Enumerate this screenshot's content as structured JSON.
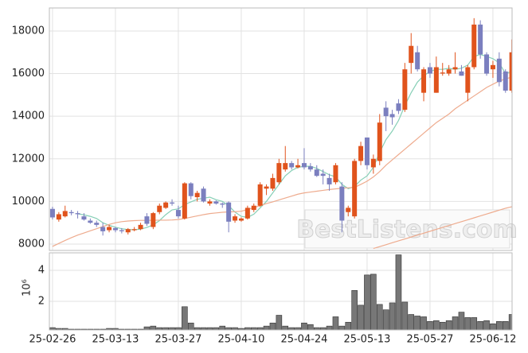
{
  "chart_data": [
    {
      "type": "candlestick",
      "up_color": "#e0531c",
      "down_color": "#7b7fbf",
      "open": [
        9650,
        9150,
        9300,
        9500,
        9450,
        9300,
        9100,
        9000,
        8800,
        8650,
        8750,
        8650,
        8550,
        8650,
        8700,
        9300,
        8800,
        9500,
        9700,
        9950,
        9600,
        9200,
        10850,
        10200,
        10600,
        9900,
        10000,
        9900,
        9950,
        9100,
        9100,
        9200,
        9600,
        9800,
        10600,
        10600,
        10900,
        11500,
        11800,
        11600,
        11800,
        11650,
        11500,
        11300,
        11100,
        10900,
        10700,
        9500,
        9300,
        11900,
        13000,
        11600,
        11900,
        14400,
        14100,
        14600,
        14300,
        16500,
        17000,
        15100,
        16300,
        15100,
        16000,
        16000,
        16200,
        16100,
        15100,
        16300,
        18300,
        16900,
        16200,
        16700,
        16100,
        15200
      ],
      "high": [
        9750,
        9500,
        9800,
        9600,
        9550,
        9450,
        9200,
        9100,
        9000,
        8900,
        8800,
        8750,
        8750,
        8800,
        9000,
        9450,
        9500,
        9900,
        10000,
        10100,
        9800,
        10900,
        10900,
        10500,
        10700,
        10100,
        10050,
        9950,
        10000,
        9400,
        9250,
        9800,
        9900,
        10900,
        10800,
        11300,
        12000,
        12600,
        11900,
        12000,
        12500,
        11800,
        11700,
        11500,
        11300,
        11800,
        10900,
        9800,
        12000,
        12800,
        13000,
        12200,
        14100,
        14700,
        14300,
        14800,
        16500,
        17900,
        17300,
        16300,
        16500,
        16800,
        16500,
        16400,
        17000,
        16400,
        16400,
        18600,
        18500,
        17000,
        16600,
        17000,
        16200,
        17600
      ],
      "low": [
        9150,
        9050,
        9250,
        9350,
        9200,
        9100,
        8950,
        8800,
        8400,
        8550,
        8550,
        8500,
        8450,
        8600,
        8650,
        8850,
        8700,
        9400,
        9650,
        9800,
        9200,
        9150,
        10100,
        10000,
        9950,
        9800,
        9850,
        9700,
        8550,
        9000,
        9050,
        9150,
        9500,
        9750,
        10300,
        10500,
        10800,
        11400,
        11500,
        11550,
        11500,
        11400,
        11150,
        10800,
        10500,
        10800,
        8550,
        9300,
        9200,
        11700,
        11500,
        11300,
        11700,
        13300,
        13600,
        14100,
        14200,
        16000,
        16100,
        14700,
        15800,
        15100,
        15900,
        15900,
        16000,
        15900,
        14700,
        16200,
        16700,
        15900,
        15800,
        15400,
        15100,
        15100
      ],
      "close": [
        9250,
        9400,
        9550,
        9450,
        9400,
        9150,
        9000,
        8900,
        8600,
        8800,
        8650,
        8600,
        8700,
        8700,
        8900,
        8950,
        9450,
        9800,
        9950,
        9900,
        9300,
        10850,
        10250,
        10400,
        10000,
        10000,
        9900,
        9850,
        9050,
        9300,
        9200,
        9700,
        9800,
        10800,
        10700,
        11100,
        11800,
        11800,
        11600,
        11700,
        11600,
        11500,
        11200,
        11200,
        10800,
        11700,
        9100,
        9700,
        11900,
        12600,
        11700,
        12000,
        13700,
        14000,
        13950,
        14250,
        16200,
        17300,
        16200,
        16200,
        16000,
        16300,
        16050,
        16200,
        16300,
        15900,
        16300,
        18300,
        16900,
        16000,
        16400,
        15600,
        15200,
        17000
      ],
      "lines": [
        {
          "color": "#86cfb6",
          "values": [
            null,
            null,
            null,
            null,
            9420,
            9370,
            9300,
            9200,
            9000,
            8880,
            8790,
            8720,
            8680,
            8670,
            8700,
            8780,
            8900,
            9100,
            9380,
            9600,
            9650,
            9850,
            9980,
            10100,
            10150,
            10200,
            10080,
            10000,
            9800,
            9500,
            9300,
            9250,
            9400,
            9700,
            10000,
            10400,
            10800,
            11200,
            11450,
            11600,
            11650,
            11650,
            11550,
            11400,
            11250,
            11150,
            10800,
            10600,
            10700,
            11000,
            11200,
            11600,
            12300,
            12900,
            13300,
            13800,
            14500,
            15100,
            15600,
            15900,
            16100,
            16200,
            16200,
            16250,
            16200,
            16250,
            16400,
            16800,
            16900,
            16800,
            16700,
            16500,
            16000,
            16100
          ]
        },
        {
          "color": "#eeab8e",
          "values": [
            7890,
            8030,
            8170,
            8300,
            8420,
            8520,
            8620,
            8720,
            8820,
            8920,
            9000,
            9050,
            9080,
            9100,
            9110,
            9110,
            9115,
            9120,
            9120,
            9130,
            9150,
            9200,
            9260,
            9320,
            9380,
            9430,
            9460,
            9490,
            9510,
            9520,
            9540,
            9620,
            9710,
            9800,
            9900,
            9980,
            10070,
            10160,
            10250,
            10340,
            10400,
            10440,
            10480,
            10520,
            10560,
            10590,
            10620,
            10640,
            10660,
            10800,
            10950,
            11150,
            11400,
            11700,
            11950,
            12200,
            12450,
            12700,
            12950,
            13200,
            13450,
            13700,
            13900,
            14100,
            14350,
            14550,
            14750,
            14950,
            15150,
            15350,
            15500,
            15650,
            15750,
            15830
          ]
        },
        {
          "color": "#eeab8e",
          "values": [
            null,
            null,
            null,
            null,
            null,
            null,
            null,
            null,
            null,
            null,
            null,
            null,
            null,
            null,
            null,
            null,
            null,
            null,
            null,
            null,
            null,
            null,
            null,
            null,
            null,
            null,
            null,
            null,
            null,
            null,
            null,
            null,
            null,
            null,
            null,
            null,
            null,
            null,
            null,
            null,
            null,
            null,
            null,
            null,
            null,
            null,
            null,
            null,
            null,
            null,
            null,
            7790,
            7880,
            7970,
            8060,
            8150,
            8240,
            8330,
            8420,
            8510,
            8600,
            8690,
            8780,
            8870,
            8960,
            9050,
            9140,
            9230,
            9320,
            9410,
            9500,
            9590,
            9680,
            9750
          ]
        }
      ],
      "ylim": [
        7700,
        19080
      ],
      "yticks": [
        8000,
        10000,
        12000,
        14000,
        16000,
        18000
      ],
      "grid": true,
      "watermark": "BestListens.com"
    },
    {
      "type": "bar",
      "color": "#777777",
      "y_label": "10⁶",
      "categories": [
        "25-02-26",
        null,
        null,
        null,
        null,
        null,
        null,
        null,
        null,
        null,
        "25-03-13",
        null,
        null,
        null,
        null,
        null,
        null,
        null,
        null,
        null,
        "25-03-27",
        null,
        null,
        null,
        null,
        null,
        null,
        null,
        null,
        null,
        "25-04-10",
        null,
        null,
        null,
        null,
        null,
        null,
        null,
        null,
        null,
        "25-04-24",
        null,
        null,
        null,
        null,
        null,
        null,
        null,
        null,
        null,
        "25-05-13",
        null,
        null,
        null,
        null,
        null,
        null,
        null,
        null,
        null,
        "25-05-27",
        null,
        null,
        null,
        null,
        null,
        null,
        null,
        null,
        null,
        "25-06-12",
        null,
        null,
        null
      ],
      "values": [
        0.3,
        0.25,
        0.25,
        0.2,
        0.2,
        0.2,
        0.2,
        0.2,
        0.2,
        0.25,
        0.25,
        0.2,
        0.2,
        0.2,
        0.2,
        0.35,
        0.4,
        0.3,
        0.3,
        0.3,
        0.3,
        1.65,
        0.6,
        0.3,
        0.3,
        0.3,
        0.3,
        0.4,
        0.3,
        0.3,
        0.25,
        0.3,
        0.3,
        0.3,
        0.4,
        0.6,
        1.1,
        0.4,
        0.3,
        0.3,
        0.6,
        0.5,
        0.3,
        0.3,
        0.4,
        1.0,
        0.4,
        0.65,
        2.7,
        1.75,
        3.7,
        3.75,
        1.8,
        1.45,
        1.9,
        5.0,
        1.95,
        1.15,
        1.05,
        1.0,
        0.7,
        0.75,
        0.65,
        0.75,
        1.0,
        1.3,
        0.95,
        0.95,
        0.7,
        0.75,
        0.55,
        0.7,
        0.7,
        1.15
      ],
      "ylim": [
        0.15,
        5.13
      ],
      "yticks": [
        2,
        4
      ],
      "grid": true
    }
  ]
}
